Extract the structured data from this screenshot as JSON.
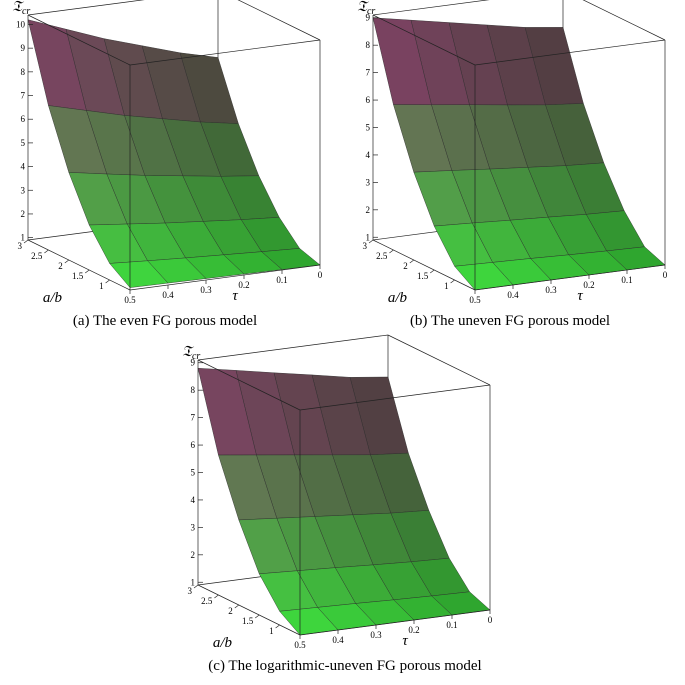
{
  "chart_data": [
    {
      "type": "surface",
      "caption": "(a)  The even FG porous model",
      "x_label": "τ",
      "y_label": "a/b",
      "z_label": "𝔗",
      "z_label_sub": "cr",
      "x": [
        0,
        0.1,
        0.2,
        0.3,
        0.4,
        0.5
      ],
      "y": [
        0.5,
        1,
        1.5,
        2,
        2.5,
        3
      ],
      "z": [
        [
          0.9,
          0.92,
          0.94,
          0.96,
          0.98,
          1.0
        ],
        [
          1.18,
          1.25,
          1.33,
          1.41,
          1.5,
          1.6
        ],
        [
          2.07,
          2.18,
          2.32,
          2.46,
          2.63,
          2.8
        ],
        [
          3.4,
          3.59,
          3.82,
          4.05,
          4.32,
          4.6
        ],
        [
          5.18,
          5.46,
          5.81,
          6.16,
          6.58,
          7.0
        ],
        [
          7.55,
          7.96,
          8.47,
          8.98,
          9.59,
          10.2
        ]
      ],
      "xlim": [
        0,
        0.5
      ],
      "ylim": [
        0.5,
        3
      ],
      "zlim": [
        0.9,
        10.4
      ],
      "xticks": [
        0,
        0.1,
        0.2,
        0.3,
        0.4,
        0.5
      ],
      "yticks": [
        1,
        1.5,
        2,
        2.5,
        3
      ],
      "zticks": [
        1,
        2,
        3,
        4,
        5,
        6,
        7,
        8,
        9,
        10
      ],
      "color_low": "#3fe83f",
      "color_high": "#a3287f"
    },
    {
      "type": "surface",
      "caption": "(b)  The uneven FG porous model",
      "x_label": "τ",
      "y_label": "a/b",
      "z_label": "𝔗",
      "z_label_sub": "cr",
      "x": [
        0,
        0.1,
        0.2,
        0.3,
        0.4,
        0.5
      ],
      "y": [
        0.5,
        1,
        1.5,
        2,
        2.5,
        3
      ],
      "z": [
        [
          0.9,
          0.9,
          0.9,
          0.9,
          0.9,
          0.9
        ],
        [
          1.2,
          1.23,
          1.27,
          1.32,
          1.36,
          1.4
        ],
        [
          2.15,
          2.2,
          2.28,
          2.35,
          2.43,
          2.5
        ],
        [
          3.53,
          3.61,
          3.73,
          3.85,
          3.98,
          4.1
        ],
        [
          5.33,
          5.46,
          5.64,
          5.83,
          6.01,
          6.2
        ],
        [
          7.74,
          7.92,
          8.19,
          8.46,
          8.73,
          9.0
        ]
      ],
      "xlim": [
        0,
        0.5
      ],
      "ylim": [
        0.5,
        3
      ],
      "zlim": [
        0.9,
        9.1
      ],
      "xticks": [
        0,
        0.1,
        0.2,
        0.3,
        0.4,
        0.5
      ],
      "yticks": [
        1,
        1.5,
        2,
        2.5,
        3
      ],
      "zticks": [
        1,
        2,
        3,
        4,
        5,
        6,
        7,
        8,
        9
      ],
      "color_low": "#3fe83f",
      "color_high": "#a3287f"
    },
    {
      "type": "surface",
      "caption": "(c) The logarithmic-uneven FG porous model",
      "x_label": "τ",
      "y_label": "a/b",
      "z_label": "𝔗",
      "z_label_sub": "cr",
      "x": [
        0,
        0.1,
        0.2,
        0.3,
        0.4,
        0.5
      ],
      "y": [
        0.5,
        1,
        1.5,
        2,
        2.5,
        3
      ],
      "z": [
        [
          0.9,
          0.9,
          0.9,
          0.9,
          0.9,
          0.9
        ],
        [
          1.2,
          1.23,
          1.27,
          1.32,
          1.36,
          1.4
        ],
        [
          2.06,
          2.11,
          2.18,
          2.26,
          2.33,
          2.4
        ],
        [
          3.44,
          3.52,
          3.64,
          3.76,
          3.88,
          4.0
        ],
        [
          5.16,
          5.28,
          5.46,
          5.64,
          5.82,
          6.0
        ],
        [
          7.57,
          7.74,
          8.01,
          8.27,
          8.54,
          8.8
        ]
      ],
      "xlim": [
        0,
        0.5
      ],
      "ylim": [
        0.5,
        3
      ],
      "zlim": [
        0.9,
        9.1
      ],
      "xticks": [
        0,
        0.1,
        0.2,
        0.3,
        0.4,
        0.5
      ],
      "yticks": [
        1,
        1.5,
        2,
        2.5,
        3
      ],
      "zticks": [
        1,
        2,
        3,
        4,
        5,
        6,
        7,
        8,
        9
      ],
      "color_low": "#3fe83f",
      "color_high": "#a3287f"
    }
  ]
}
